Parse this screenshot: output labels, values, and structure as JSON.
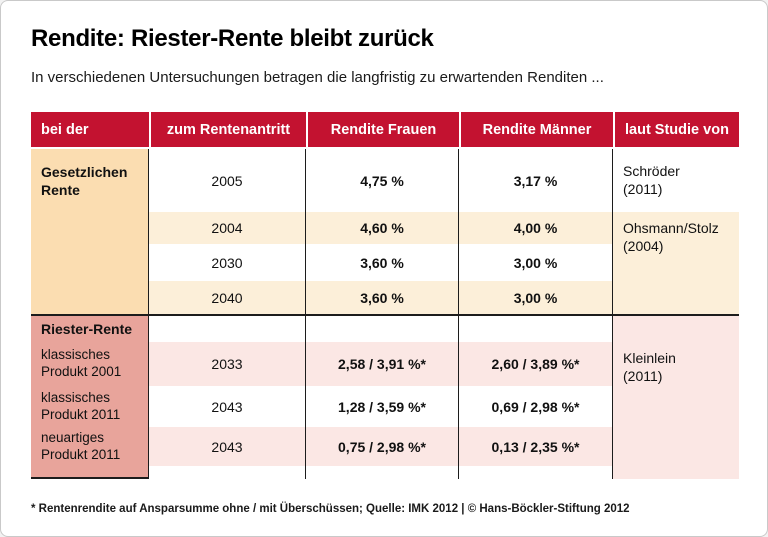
{
  "page": {
    "title": "Rendite: Riester-Rente bleibt zurück",
    "subtitle": "In verschiedenen Untersuchungen betragen die langfristig zu erwartenden Renditen ...",
    "footnote": "* Rentenrendite auf Ansparsumme ohne / mit Überschüssen; Quelle: IMK 2012 | © Hans-Böckler-Stiftung 2012"
  },
  "colors": {
    "header_red": "#C31230",
    "peach_dark": "#FBDDB1",
    "peach_light": "#FCEFD9",
    "salmon": "#E8A49B",
    "pink_light": "#FBE7E4",
    "border_dark": "#1c1c1c"
  },
  "table": {
    "headers": [
      "bei der",
      "zum Rentenantritt",
      "Rendite Frauen",
      "Rendite Männer",
      "laut Studie von"
    ],
    "gesetzliche": {
      "label": "Gesetzlichen\nRente",
      "rows": [
        {
          "year": "2005",
          "frauen": "4,75 %",
          "maenner": "3,17 %"
        },
        {
          "year": "2004",
          "frauen": "4,60 %",
          "maenner": "4,00 %"
        },
        {
          "year": "2030",
          "frauen": "3,60 %",
          "maenner": "3,00 %"
        },
        {
          "year": "2040",
          "frauen": "3,60 %",
          "maenner": "3,00 %"
        }
      ],
      "study_1": "Schröder\n(2011)",
      "study_2": "Ohsmann/Stolz\n(2004)"
    },
    "riester": {
      "label": "Riester-Rente",
      "products": [
        "klassisches\nProdukt 2001",
        "klassisches\nProdukt 2011",
        "neuartiges\nProdukt 2011"
      ],
      "rows": [
        {
          "year": "2033",
          "frauen": "2,58 / 3,91 %*",
          "maenner": "2,60 / 3,89 %*"
        },
        {
          "year": "2043",
          "frauen": "1,28 / 3,59 %*",
          "maenner": "0,69 / 2,98 %*"
        },
        {
          "year": "2043",
          "frauen": "0,75 / 2,98 %*",
          "maenner": "0,13 / 2,35 %*"
        }
      ],
      "study": "Kleinlein\n(2011)"
    }
  },
  "chart_data": {
    "type": "table",
    "title": "Rendite: Riester-Rente bleibt zurück",
    "subtitle": "In verschiedenen Untersuchungen betragen die langfristig zu erwartenden Renditen ...",
    "columns": [
      "bei der",
      "zum Rentenantritt",
      "Rendite Frauen",
      "Rendite Männer",
      "laut Studie von"
    ],
    "rows": [
      [
        "Gesetzlichen Rente",
        "2005",
        "4,75 %",
        "3,17 %",
        "Schröder (2011)"
      ],
      [
        "Gesetzlichen Rente",
        "2004",
        "4,60 %",
        "4,00 %",
        "Ohsmann/Stolz (2004)"
      ],
      [
        "Gesetzlichen Rente",
        "2030",
        "3,60 %",
        "3,00 %",
        "Ohsmann/Stolz (2004)"
      ],
      [
        "Gesetzlichen Rente",
        "2040",
        "3,60 %",
        "3,00 %",
        "Ohsmann/Stolz (2004)"
      ],
      [
        "Riester-Rente klassisches Produkt 2001",
        "2033",
        "2,58 / 3,91 %*",
        "2,60 / 3,89 %*",
        "Kleinlein (2011)"
      ],
      [
        "Riester-Rente klassisches Produkt 2011",
        "2043",
        "1,28 / 3,59 %*",
        "0,69 / 2,98 %*",
        "Kleinlein (2011)"
      ],
      [
        "Riester-Rente neuartiges Produkt 2011",
        "2043",
        "0,75 / 2,98 %*",
        "0,13 / 2,35 %*",
        "Kleinlein (2011)"
      ]
    ],
    "footnote": "* Rentenrendite auf Ansparsumme ohne / mit Überschüssen; Quelle: IMK 2012 | © Hans-Böckler-Stiftung 2012"
  }
}
